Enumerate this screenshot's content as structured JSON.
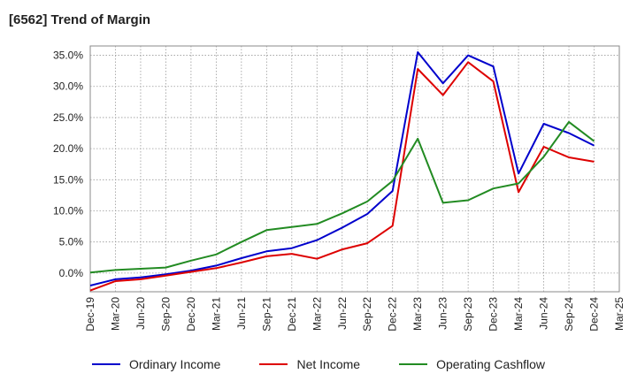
{
  "title": "[6562]  Trend of Margin",
  "chart_data": {
    "type": "line",
    "title": "[6562]  Trend of Margin",
    "xlabel": "",
    "ylabel": "",
    "ylim": [
      -3,
      36.5
    ],
    "y_ticks": [
      "35.0%",
      "30.0%",
      "25.0%",
      "20.0%",
      "15.0%",
      "10.0%",
      "5.0%",
      "0.0%"
    ],
    "y_tick_values": [
      35,
      30,
      25,
      20,
      15,
      10,
      5,
      0
    ],
    "x_ticks": [
      "Dec-19",
      "Mar-20",
      "Jun-20",
      "Sep-20",
      "Dec-20",
      "Mar-21",
      "Jun-21",
      "Sep-21",
      "Dec-21",
      "Mar-22",
      "Jun-22",
      "Sep-22",
      "Dec-22",
      "Mar-23",
      "Jun-23",
      "Sep-23",
      "Dec-23",
      "Mar-24",
      "Jun-24",
      "Sep-24",
      "Dec-24",
      "Mar-25"
    ],
    "grid": true,
    "legend_position": "bottom",
    "series": [
      {
        "name": "Ordinary Income",
        "color": "#0000cc",
        "values": [
          -2.0,
          -1.0,
          -0.7,
          -0.2,
          0.4,
          1.2,
          2.4,
          3.5,
          4.0,
          5.3,
          7.3,
          9.5,
          13.2,
          35.5,
          30.5,
          35.0,
          33.2,
          16.0,
          24.0,
          22.5,
          20.5,
          null
        ]
      },
      {
        "name": "Net Income",
        "color": "#dd0000",
        "values": [
          -2.8,
          -1.3,
          -1.0,
          -0.4,
          0.2,
          0.8,
          1.7,
          2.7,
          3.1,
          2.3,
          3.8,
          4.8,
          7.6,
          32.8,
          28.6,
          33.9,
          30.8,
          13.0,
          20.3,
          18.6,
          17.9,
          null
        ]
      },
      {
        "name": "Operating Cashflow",
        "color": "#228b22",
        "values": [
          0.1,
          0.5,
          0.7,
          0.9,
          2.0,
          3.0,
          5.0,
          6.9,
          7.4,
          7.9,
          9.6,
          11.5,
          14.8,
          21.6,
          11.3,
          11.7,
          13.6,
          14.4,
          18.7,
          24.3,
          21.2,
          null
        ]
      }
    ]
  }
}
